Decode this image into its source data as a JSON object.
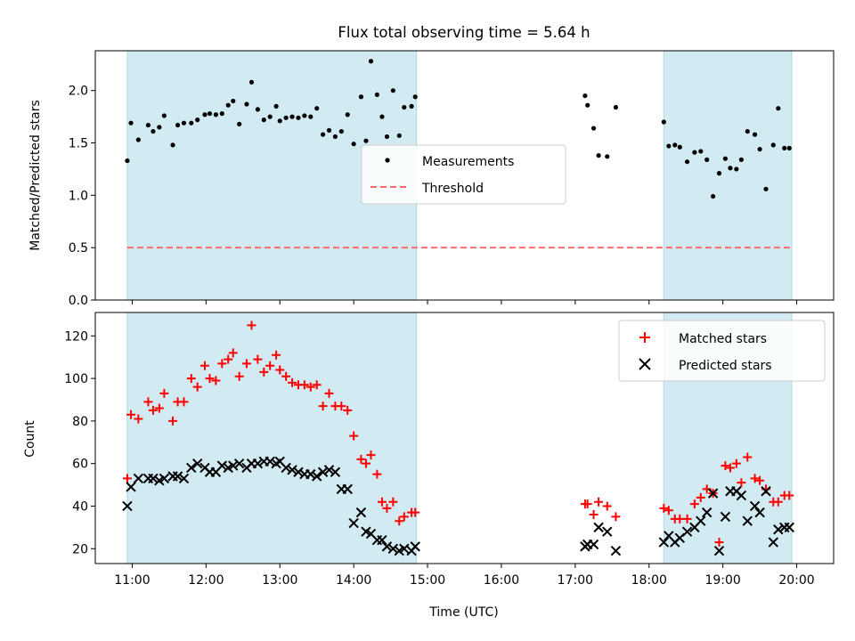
{
  "title": "Flux total observing time = 5.64 h",
  "colors": {
    "shade": "#add8e6",
    "measurement": "#000000",
    "threshold": "#ff6b6b",
    "matched": "#ff0000",
    "predicted": "#000000"
  },
  "chart_data": [
    {
      "type": "scatter",
      "ylabel": "Matched/Predicted stars",
      "ylim": [
        0,
        2.38
      ],
      "yticks": [
        0.0,
        0.5,
        1.0,
        1.5,
        2.0
      ],
      "ytick_labels": [
        "0.0",
        "0.5",
        "1.0",
        "1.5",
        "2.0"
      ],
      "legend": {
        "placement": "center",
        "entries": [
          "Measurements",
          "Threshold"
        ]
      },
      "threshold": 0.5,
      "shaded_intervals": [
        [
          "10:56",
          "14:51"
        ],
        [
          "18:12",
          "19:56"
        ]
      ],
      "series": [
        {
          "name": "Measurements",
          "x": [
            "10:56",
            "10:59",
            "11:05",
            "11:13",
            "11:17",
            "11:22",
            "11:26",
            "11:33",
            "11:37",
            "11:42",
            "11:48",
            "11:53",
            "11:59",
            "12:03",
            "12:08",
            "12:13",
            "12:18",
            "12:22",
            "12:27",
            "12:33",
            "12:37",
            "12:42",
            "12:47",
            "12:52",
            "12:57",
            "13:00",
            "13:05",
            "13:10",
            "13:15",
            "13:20",
            "13:25",
            "13:30",
            "13:35",
            "13:40",
            "13:45",
            "13:50",
            "13:55",
            "14:00",
            "14:06",
            "14:10",
            "14:14",
            "14:19",
            "14:23",
            "14:27",
            "14:32",
            "14:37",
            "14:41",
            "14:47",
            "14:50",
            "17:08",
            "17:10",
            "17:15",
            "17:19",
            "17:26",
            "17:33",
            "18:12",
            "18:16",
            "18:21",
            "18:25",
            "18:31",
            "18:37",
            "18:42",
            "18:47",
            "18:52",
            "18:57",
            "19:02",
            "19:06",
            "19:11",
            "19:15",
            "19:20",
            "19:26",
            "19:30",
            "19:35",
            "19:41",
            "19:45",
            "19:50",
            "19:54"
          ],
          "y": [
            1.33,
            1.69,
            1.53,
            1.67,
            1.61,
            1.65,
            1.76,
            1.48,
            1.67,
            1.69,
            1.69,
            1.72,
            1.77,
            1.78,
            1.77,
            1.78,
            1.86,
            1.9,
            1.68,
            1.87,
            2.08,
            1.82,
            1.72,
            1.75,
            1.85,
            1.71,
            1.74,
            1.75,
            1.74,
            1.76,
            1.75,
            1.83,
            1.58,
            1.62,
            1.56,
            1.61,
            1.77,
            1.49,
            1.94,
            1.52,
            2.28,
            1.96,
            1.75,
            1.56,
            2.0,
            1.57,
            1.84,
            1.85,
            1.94,
            1.95,
            1.86,
            1.64,
            1.38,
            1.37,
            1.84,
            1.7,
            1.47,
            1.48,
            1.46,
            1.32,
            1.41,
            1.42,
            1.34,
            0.99,
            1.21,
            1.35,
            1.26,
            1.25,
            1.34,
            1.61,
            1.58,
            1.44,
            1.06,
            1.48,
            1.83,
            1.45,
            1.45
          ]
        }
      ]
    },
    {
      "type": "scatter",
      "xlabel": "Time (UTC)",
      "ylabel": "Count",
      "ylim": [
        13,
        131
      ],
      "yticks": [
        20,
        40,
        60,
        80,
        100,
        120
      ],
      "ytick_labels": [
        "20",
        "40",
        "60",
        "80",
        "100",
        "120"
      ],
      "xticks": [
        "11:00",
        "12:00",
        "13:00",
        "14:00",
        "15:00",
        "16:00",
        "17:00",
        "18:00",
        "19:00",
        "20:00"
      ],
      "xlim": [
        "10:30",
        "20:30"
      ],
      "legend": {
        "placement": "top-right",
        "entries": [
          "Matched stars",
          "Predicted stars"
        ]
      },
      "shaded_intervals": [
        [
          "10:56",
          "14:51"
        ],
        [
          "18:12",
          "19:56"
        ]
      ],
      "series": [
        {
          "name": "Matched stars",
          "x": [
            "10:56",
            "10:59",
            "11:05",
            "11:13",
            "11:17",
            "11:22",
            "11:26",
            "11:33",
            "11:37",
            "11:42",
            "11:48",
            "11:53",
            "11:59",
            "12:03",
            "12:08",
            "12:13",
            "12:18",
            "12:22",
            "12:27",
            "12:33",
            "12:37",
            "12:42",
            "12:47",
            "12:52",
            "12:57",
            "13:00",
            "13:05",
            "13:10",
            "13:15",
            "13:20",
            "13:25",
            "13:30",
            "13:35",
            "13:40",
            "13:45",
            "13:50",
            "13:55",
            "14:00",
            "14:06",
            "14:10",
            "14:14",
            "14:19",
            "14:23",
            "14:27",
            "14:32",
            "14:37",
            "14:41",
            "14:47",
            "14:50",
            "17:08",
            "17:10",
            "17:15",
            "17:19",
            "17:26",
            "17:33",
            "18:12",
            "18:16",
            "18:21",
            "18:25",
            "18:31",
            "18:37",
            "18:42",
            "18:47",
            "18:52",
            "18:57",
            "19:02",
            "19:06",
            "19:11",
            "19:15",
            "19:20",
            "19:26",
            "19:30",
            "19:35",
            "19:41",
            "19:45",
            "19:50",
            "19:54"
          ],
          "y": [
            53,
            83,
            81,
            89,
            85,
            86,
            93,
            80,
            89,
            89,
            100,
            96,
            106,
            100,
            99,
            107,
            109,
            112,
            101,
            107,
            125,
            109,
            103,
            106,
            111,
            104,
            101,
            98,
            97,
            97,
            96,
            97,
            87,
            93,
            87,
            87,
            85,
            73,
            62,
            60,
            64,
            55,
            42,
            39,
            42,
            33,
            35,
            37,
            37,
            41,
            41,
            36,
            42,
            40,
            35,
            39,
            38,
            34,
            34,
            34,
            41,
            44,
            48,
            46,
            23,
            59,
            58,
            60,
            51,
            63,
            53,
            52,
            48,
            42,
            42,
            45,
            45
          ]
        },
        {
          "name": "Predicted stars",
          "x": [
            "10:56",
            "10:59",
            "11:05",
            "11:13",
            "11:17",
            "11:22",
            "11:26",
            "11:33",
            "11:37",
            "11:42",
            "11:48",
            "11:53",
            "11:59",
            "12:03",
            "12:08",
            "12:13",
            "12:18",
            "12:22",
            "12:27",
            "12:33",
            "12:37",
            "12:42",
            "12:47",
            "12:52",
            "12:57",
            "13:00",
            "13:05",
            "13:10",
            "13:15",
            "13:20",
            "13:25",
            "13:30",
            "13:35",
            "13:40",
            "13:45",
            "13:50",
            "13:55",
            "14:00",
            "14:06",
            "14:10",
            "14:14",
            "14:19",
            "14:23",
            "14:27",
            "14:32",
            "14:37",
            "14:41",
            "14:47",
            "14:50",
            "17:08",
            "17:10",
            "17:15",
            "17:19",
            "17:26",
            "17:33",
            "18:12",
            "18:16",
            "18:21",
            "18:25",
            "18:31",
            "18:37",
            "18:42",
            "18:47",
            "18:52",
            "18:57",
            "19:02",
            "19:06",
            "19:11",
            "19:15",
            "19:20",
            "19:26",
            "19:30",
            "19:35",
            "19:41",
            "19:45",
            "19:50",
            "19:54"
          ],
          "y": [
            40,
            49,
            53,
            53,
            53,
            52,
            53,
            54,
            54,
            53,
            58,
            60,
            58,
            56,
            56,
            59,
            58,
            59,
            60,
            58,
            60,
            60,
            61,
            61,
            60,
            61,
            58,
            57,
            56,
            55,
            55,
            54,
            56,
            57,
            56,
            48,
            48,
            32,
            37,
            28,
            27,
            24,
            24,
            21,
            20,
            19,
            20,
            19,
            21,
            21,
            22,
            22,
            30,
            28,
            19,
            23,
            26,
            23,
            25,
            28,
            30,
            33,
            37,
            46,
            19,
            35,
            47,
            47,
            45,
            33,
            40,
            37,
            47,
            23,
            29,
            30,
            30
          ]
        }
      ]
    }
  ]
}
